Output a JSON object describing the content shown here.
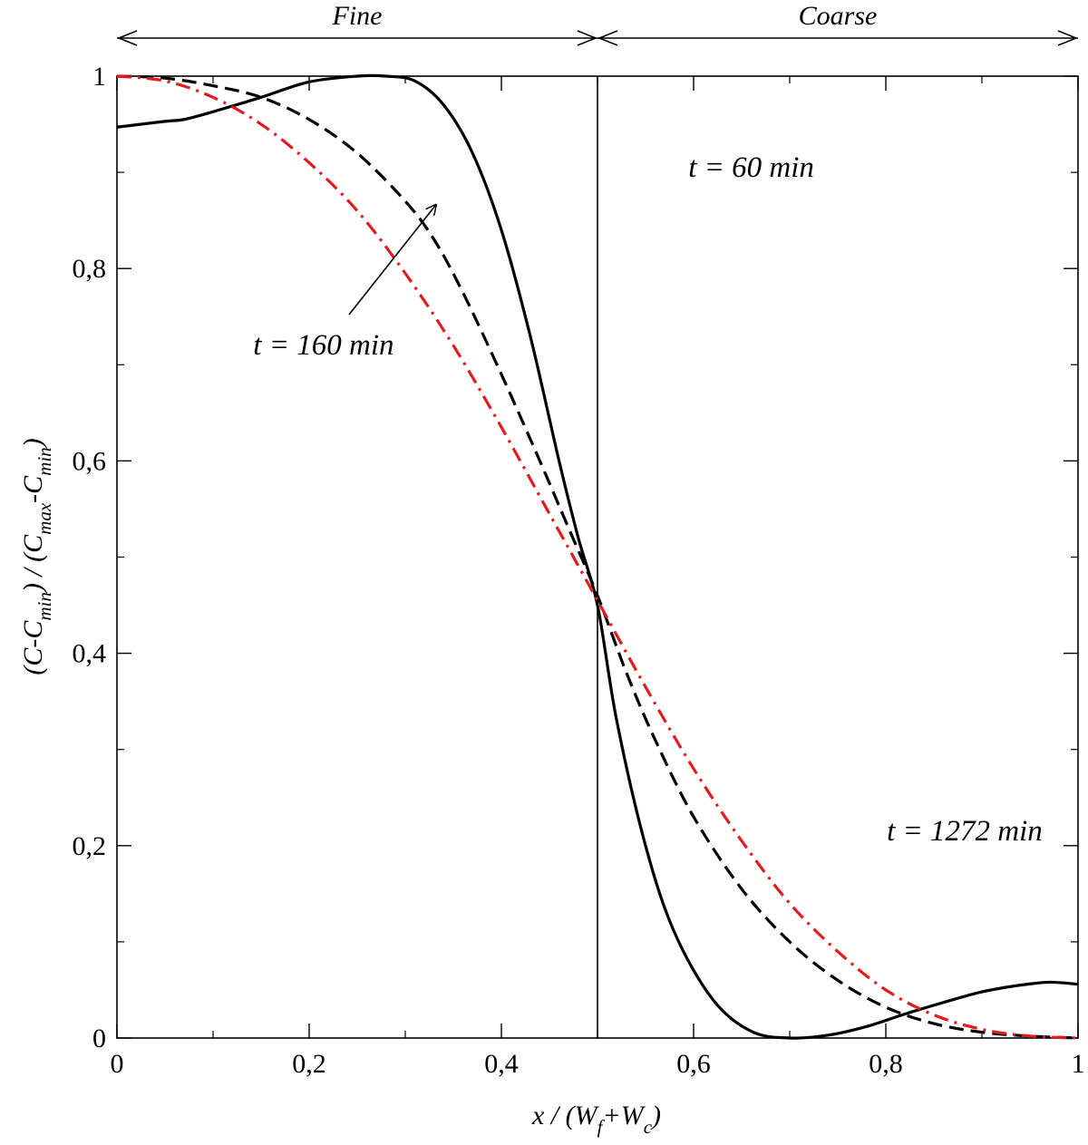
{
  "chart_data": {
    "type": "line",
    "xlim": [
      0,
      1
    ],
    "ylim": [
      0,
      1
    ],
    "x_ticks": [
      "0",
      "0,2",
      "0,4",
      "0,6",
      "0,8",
      "1"
    ],
    "y_ticks": [
      "0",
      "0,2",
      "0,4",
      "0,6",
      "0,8",
      "1"
    ],
    "xlabel": {
      "main": "x / (W",
      "sub1": "f",
      "mid": "+W",
      "sub2": "c",
      "end": ")"
    },
    "ylabel": {
      "p1": "(C-C",
      "s1": "min",
      "p2": ") / (C",
      "s2": "max",
      "p3": "-C",
      "s3": "min",
      "p4": ")"
    },
    "regions": [
      {
        "label": "Fine",
        "from": 0,
        "to": 0.5
      },
      {
        "label": "Coarse",
        "from": 0.5,
        "to": 1
      }
    ],
    "interface_x": 0.5,
    "grid": false,
    "series": [
      {
        "label": "t = 60 min",
        "color": "#000000",
        "style": "solid",
        "x": [
          0,
          0.05,
          0.07,
          0.1,
          0.15,
          0.2,
          0.25,
          0.28,
          0.31,
          0.34,
          0.37,
          0.4,
          0.43,
          0.46,
          0.48,
          0.5,
          0.52,
          0.55,
          0.58,
          0.62,
          0.66,
          0.7,
          0.74,
          0.78,
          0.82,
          0.86,
          0.9,
          0.94,
          0.97,
          1.0
        ],
        "y": [
          0.947,
          0.953,
          0.955,
          0.963,
          0.978,
          0.994,
          1.0,
          1.0,
          0.995,
          0.97,
          0.92,
          0.84,
          0.73,
          0.6,
          0.52,
          0.45,
          0.33,
          0.2,
          0.11,
          0.04,
          0.007,
          0.0,
          0.003,
          0.012,
          0.025,
          0.037,
          0.048,
          0.055,
          0.058,
          0.056
        ]
      },
      {
        "label": "t = 160 min",
        "color": "#000000",
        "style": "dashed",
        "x": [
          0,
          0.05,
          0.1,
          0.15,
          0.2,
          0.25,
          0.3,
          0.33,
          0.36,
          0.4,
          0.44,
          0.47,
          0.5,
          0.53,
          0.56,
          0.6,
          0.65,
          0.7,
          0.75,
          0.8,
          0.85,
          0.9,
          0.95,
          1.0
        ],
        "y": [
          1.0,
          0.998,
          0.99,
          0.978,
          0.955,
          0.92,
          0.87,
          0.83,
          0.775,
          0.69,
          0.6,
          0.53,
          0.46,
          0.38,
          0.31,
          0.23,
          0.155,
          0.1,
          0.06,
          0.032,
          0.015,
          0.006,
          0.002,
          0.0
        ]
      },
      {
        "label": "t = 1272 min",
        "color": "#e41a1c",
        "style": "dashdot",
        "x": [
          0,
          0.05,
          0.1,
          0.15,
          0.2,
          0.25,
          0.3,
          0.35,
          0.4,
          0.45,
          0.5,
          0.55,
          0.6,
          0.65,
          0.7,
          0.75,
          0.8,
          0.85,
          0.9,
          0.95,
          1.0
        ],
        "y": [
          1.0,
          0.995,
          0.978,
          0.95,
          0.91,
          0.86,
          0.795,
          0.72,
          0.635,
          0.545,
          0.455,
          0.365,
          0.28,
          0.205,
          0.14,
          0.09,
          0.05,
          0.024,
          0.009,
          0.002,
          0.0
        ]
      }
    ],
    "annotations": [
      {
        "text": "t = 60 min",
        "x": 0.66,
        "y": 0.905
      },
      {
        "text": "t = 160 min",
        "x": 0.215,
        "y": 0.72,
        "arrow_to": [
          0.33,
          0.87
        ]
      },
      {
        "text": "t = 1272 min",
        "x": 0.882,
        "y": 0.215
      }
    ]
  }
}
